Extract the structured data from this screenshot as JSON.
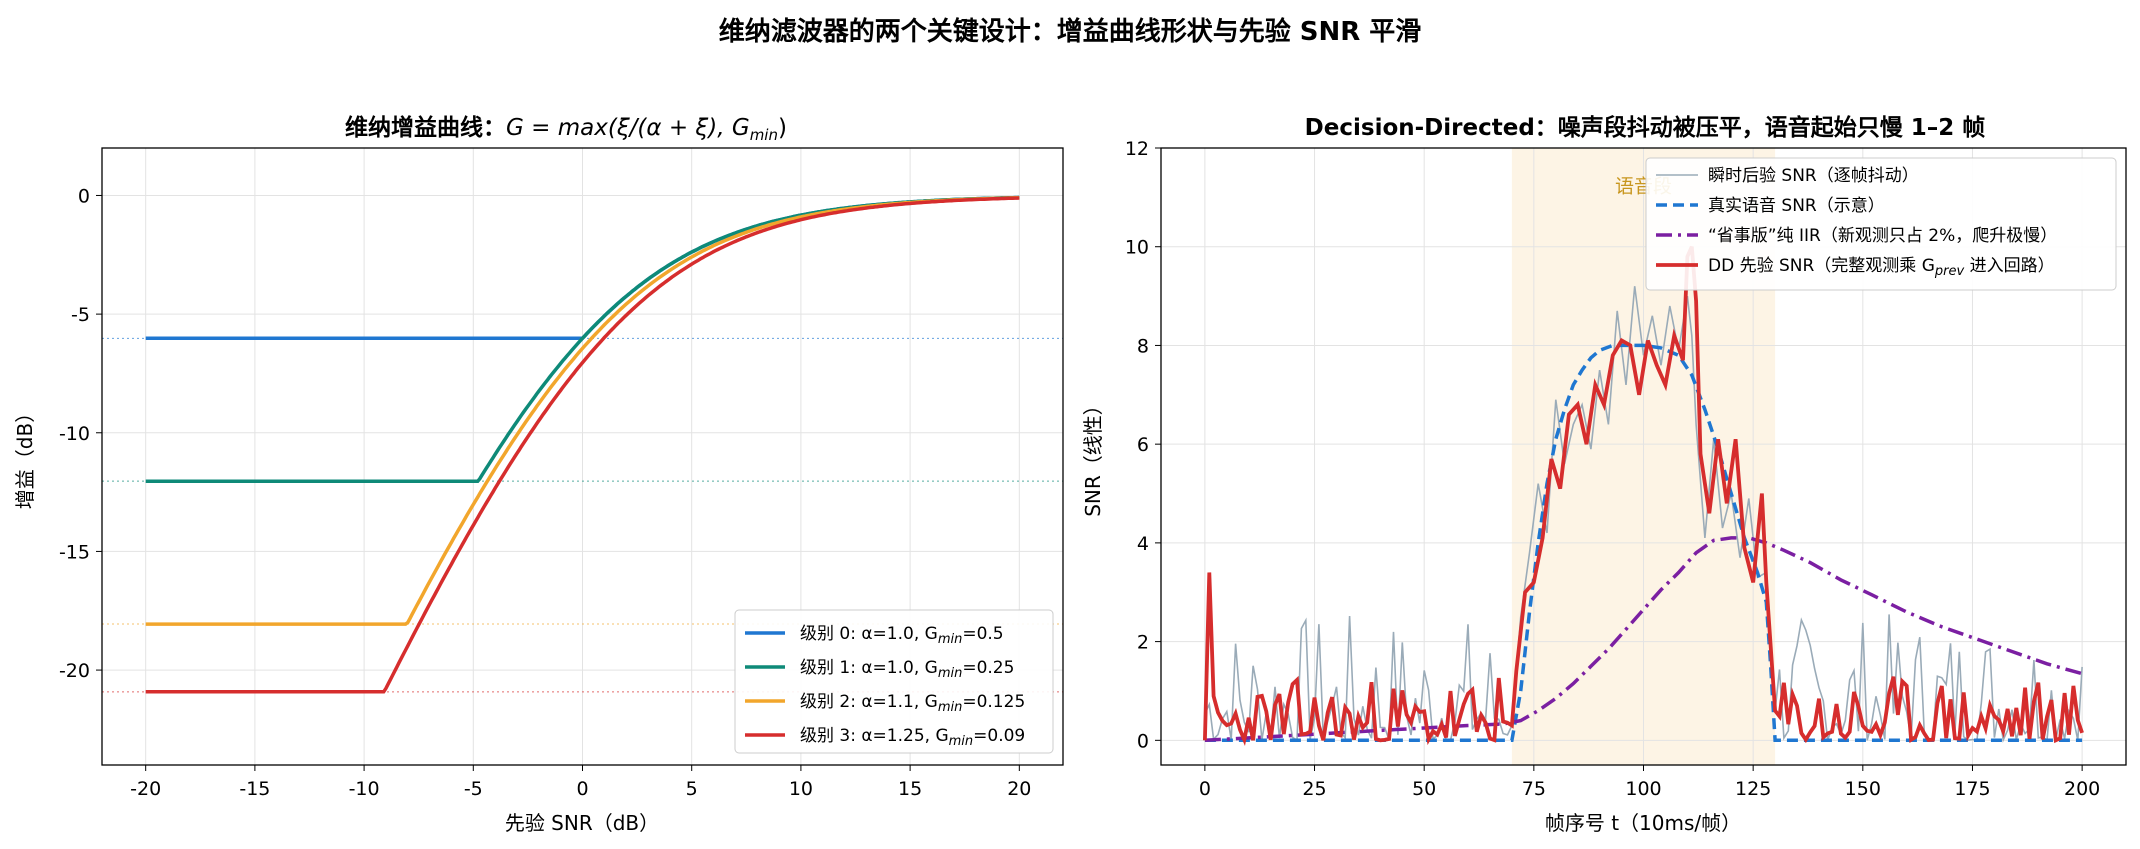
{
  "figure": {
    "suptitle": "维纳滤波器的两个关键设计：增益曲线形状与先验 SNR 平滑"
  },
  "colors": {
    "blue": "#1f77d1",
    "teal": "#0e8a78",
    "orange": "#f2a62c",
    "red": "#d62d2d",
    "gray": "#9aabb8",
    "purple": "#7b1fa2",
    "shade": "#fdf2e1"
  },
  "chart_data": [
    {
      "type": "line",
      "title_prefix": "维纳增益曲线：",
      "title_formula": "G = max(ξ/(α + ξ), G",
      "title_formula_sub": "min",
      "title_formula_end": ")",
      "xlabel": "先验 SNR（dB）",
      "ylabel": "增益（dB）",
      "xlim": [
        -22,
        22
      ],
      "ylim": [
        -24,
        2
      ],
      "xticks": [
        -20,
        -15,
        -10,
        -5,
        0,
        5,
        10,
        15,
        20
      ],
      "yticks": [
        0,
        -5,
        -10,
        -15,
        -20
      ],
      "grid": true,
      "legend_position": "lower-right",
      "series": [
        {
          "name_prefix": "级别 0: α=1.0, G",
          "name_sub": "min",
          "name_suffix": "=0.5",
          "alpha": 1.0,
          "gmin": 0.5,
          "floor_db": -6.02,
          "color_key": "blue"
        },
        {
          "name_prefix": "级别 1: α=1.0, G",
          "name_sub": "min",
          "name_suffix": "=0.25",
          "alpha": 1.0,
          "gmin": 0.25,
          "floor_db": -12.04,
          "color_key": "teal"
        },
        {
          "name_prefix": "级别 2: α=1.1, G",
          "name_sub": "min",
          "name_suffix": "=0.125",
          "alpha": 1.1,
          "gmin": 0.125,
          "floor_db": -18.06,
          "color_key": "orange"
        },
        {
          "name_prefix": "级别 3: α=1.25, G",
          "name_sub": "min",
          "name_suffix": "=0.09",
          "alpha": 1.25,
          "gmin": 0.09,
          "floor_db": -20.92,
          "color_key": "red"
        }
      ]
    },
    {
      "type": "line",
      "title": "Decision-Directed：噪声段抖动被压平，语音起始只慢 1–2 帧",
      "xlabel": "帧序号 t（10ms/帧）",
      "ylabel": "SNR（线性）",
      "xlim": [
        -10,
        210
      ],
      "ylim": [
        -0.5,
        12
      ],
      "xticks": [
        0,
        25,
        50,
        75,
        100,
        125,
        150,
        175,
        200
      ],
      "yticks": [
        0,
        2,
        4,
        6,
        8,
        10,
        12
      ],
      "grid": true,
      "legend_position": "top-right",
      "speech_region": {
        "start": 70,
        "end": 130,
        "label": "语音段"
      },
      "series": [
        {
          "name": "瞬时后验 SNR（逐帧抖动）",
          "color_key": "gray",
          "noise_seed": 7,
          "speech_points": [
            [
              70,
              0.3
            ],
            [
              72,
              2.5
            ],
            [
              74,
              3.8
            ],
            [
              76,
              5.2
            ],
            [
              78,
              4.2
            ],
            [
              80,
              6.9
            ],
            [
              82,
              5.6
            ],
            [
              84,
              6.4
            ],
            [
              86,
              6.8
            ],
            [
              88,
              5.9
            ],
            [
              90,
              7.5
            ],
            [
              92,
              6.4
            ],
            [
              94,
              8.7
            ],
            [
              96,
              7.2
            ],
            [
              98,
              9.2
            ],
            [
              100,
              7.8
            ],
            [
              102,
              8.6
            ],
            [
              104,
              7.6
            ],
            [
              106,
              8.8
            ],
            [
              108,
              7.9
            ],
            [
              110,
              9.0
            ],
            [
              111,
              8.2
            ],
            [
              112,
              6.4
            ],
            [
              114,
              4.1
            ],
            [
              116,
              6.1
            ],
            [
              118,
              4.3
            ],
            [
              120,
              5.0
            ],
            [
              122,
              3.7
            ],
            [
              124,
              4.9
            ],
            [
              126,
              3.3
            ],
            [
              128,
              3.4
            ],
            [
              130,
              0.6
            ]
          ]
        },
        {
          "name": "真实语音 SNR（示意）",
          "color_key": "blue",
          "points": [
            [
              0,
              0
            ],
            [
              70,
              0
            ],
            [
              72,
              1.0
            ],
            [
              74,
              2.6
            ],
            [
              76,
              4.0
            ],
            [
              78,
              5.2
            ],
            [
              80,
              6.1
            ],
            [
              82,
              6.7
            ],
            [
              84,
              7.2
            ],
            [
              86,
              7.5
            ],
            [
              88,
              7.75
            ],
            [
              90,
              7.9
            ],
            [
              93,
              8.0
            ],
            [
              97,
              8.0
            ],
            [
              100,
              8.0
            ],
            [
              104,
              7.95
            ],
            [
              108,
              7.8
            ],
            [
              111,
              7.4
            ],
            [
              114,
              6.7
            ],
            [
              117,
              5.9
            ],
            [
              120,
              5.0
            ],
            [
              123,
              4.1
            ],
            [
              126,
              3.4
            ],
            [
              128,
              2.8
            ],
            [
              129,
              1.5
            ],
            [
              130,
              0
            ],
            [
              200,
              0
            ]
          ]
        },
        {
          "name_prefix": "“省事版”纯 IIR（新观测只占 2%，爬升极慢）",
          "color_key": "purple",
          "points": [
            [
              0,
              0
            ],
            [
              10,
              0.05
            ],
            [
              20,
              0.1
            ],
            [
              30,
              0.15
            ],
            [
              40,
              0.2
            ],
            [
              50,
              0.25
            ],
            [
              60,
              0.3
            ],
            [
              68,
              0.33
            ],
            [
              72,
              0.4
            ],
            [
              76,
              0.6
            ],
            [
              80,
              0.85
            ],
            [
              84,
              1.15
            ],
            [
              88,
              1.5
            ],
            [
              92,
              1.85
            ],
            [
              96,
              2.25
            ],
            [
              100,
              2.65
            ],
            [
              104,
              3.05
            ],
            [
              108,
              3.4
            ],
            [
              112,
              3.8
            ],
            [
              116,
              4.05
            ],
            [
              120,
              4.1
            ],
            [
              124,
              4.1
            ],
            [
              128,
              4.0
            ],
            [
              132,
              3.85
            ],
            [
              138,
              3.6
            ],
            [
              145,
              3.25
            ],
            [
              152,
              2.95
            ],
            [
              160,
              2.6
            ],
            [
              168,
              2.3
            ],
            [
              176,
              2.05
            ],
            [
              184,
              1.8
            ],
            [
              192,
              1.55
            ],
            [
              200,
              1.35
            ]
          ]
        },
        {
          "name_prefix": "DD 先验 SNR（完整观测乘 G",
          "name_sub": "prev",
          "name_suffix": " 进入回路）",
          "color_key": "red",
          "noise_seed": 23,
          "speech_points": [
            [
              70,
              0.3
            ],
            [
              71,
              1.4
            ],
            [
              73,
              3.0
            ],
            [
              75,
              3.2
            ],
            [
              77,
              4.1
            ],
            [
              79,
              5.7
            ],
            [
              81,
              5.1
            ],
            [
              83,
              6.6
            ],
            [
              85,
              6.8
            ],
            [
              87,
              6.0
            ],
            [
              89,
              7.2
            ],
            [
              91,
              6.8
            ],
            [
              93,
              7.8
            ],
            [
              95,
              8.1
            ],
            [
              97,
              8.0
            ],
            [
              99,
              7.0
            ],
            [
              101,
              8.1
            ],
            [
              103,
              7.6
            ],
            [
              105,
              7.2
            ],
            [
              107,
              8.2
            ],
            [
              109,
              7.7
            ],
            [
              110,
              9.8
            ],
            [
              111,
              10.0
            ],
            [
              112,
              8.9
            ],
            [
              113,
              5.8
            ],
            [
              115,
              4.6
            ],
            [
              117,
              6.1
            ],
            [
              119,
              4.8
            ],
            [
              121,
              6.1
            ],
            [
              123,
              3.9
            ],
            [
              125,
              3.2
            ],
            [
              127,
              5.0
            ],
            [
              128,
              3.2
            ],
            [
              130,
              0.6
            ]
          ],
          "spike_start": 3.4
        }
      ]
    }
  ]
}
